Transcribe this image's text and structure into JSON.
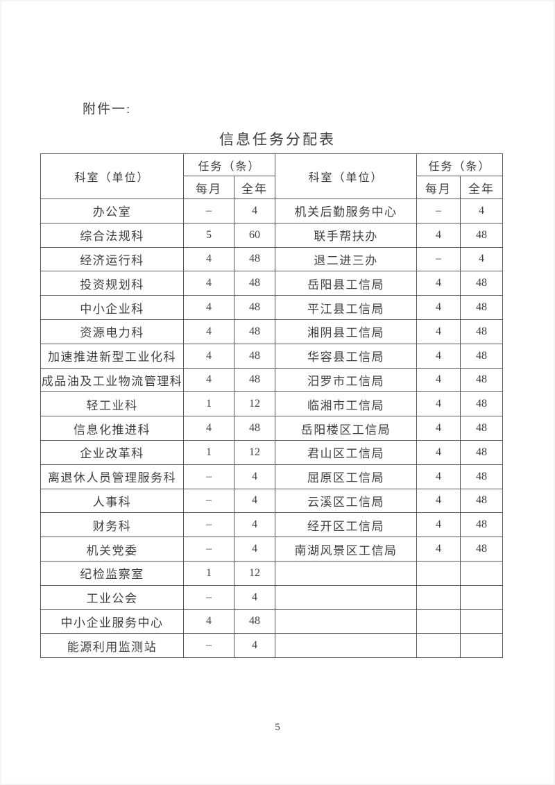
{
  "page": {
    "attachment_label": "附件一:",
    "title": "信息任务分配表",
    "page_number": "5"
  },
  "table": {
    "header": {
      "unit": "科室（单位）",
      "tasks": "任务（条）",
      "monthly": "每月",
      "annual": "全年"
    },
    "left_rows": [
      {
        "name": "办公室",
        "monthly": "–",
        "annual": "4"
      },
      {
        "name": "综合法规科",
        "monthly": "5",
        "annual": "60"
      },
      {
        "name": "经济运行科",
        "monthly": "4",
        "annual": "48"
      },
      {
        "name": "投资规划科",
        "monthly": "4",
        "annual": "48"
      },
      {
        "name": "中小企业科",
        "monthly": "4",
        "annual": "48"
      },
      {
        "name": "资源电力科",
        "monthly": "4",
        "annual": "48"
      },
      {
        "name": "加速推进新型工业化科",
        "monthly": "4",
        "annual": "48"
      },
      {
        "name": "成品油及工业物流管理科",
        "monthly": "4",
        "annual": "48"
      },
      {
        "name": "轻工业科",
        "monthly": "1",
        "annual": "12"
      },
      {
        "name": "信息化推进科",
        "monthly": "4",
        "annual": "48"
      },
      {
        "name": "企业改革科",
        "monthly": "1",
        "annual": "12"
      },
      {
        "name": "离退休人员管理服务科",
        "monthly": "–",
        "annual": "4"
      },
      {
        "name": "人事科",
        "monthly": "–",
        "annual": "4"
      },
      {
        "name": "财务科",
        "monthly": "–",
        "annual": "4"
      },
      {
        "name": "机关党委",
        "monthly": "–",
        "annual": "4"
      },
      {
        "name": "纪检监察室",
        "monthly": "1",
        "annual": "12"
      },
      {
        "name": "工业公会",
        "monthly": "–",
        "annual": "4"
      },
      {
        "name": "中小企业服务中心",
        "monthly": "4",
        "annual": "48"
      },
      {
        "name": "能源利用监测站",
        "monthly": "–",
        "annual": "4"
      }
    ],
    "right_rows": [
      {
        "name": "机关后勤服务中心",
        "monthly": "–",
        "annual": "4"
      },
      {
        "name": "联手帮扶办",
        "monthly": "4",
        "annual": "48"
      },
      {
        "name": "退二进三办",
        "monthly": "–",
        "annual": "4"
      },
      {
        "name": "岳阳县工信局",
        "monthly": "4",
        "annual": "48"
      },
      {
        "name": "平江县工信局",
        "monthly": "4",
        "annual": "48"
      },
      {
        "name": "湘阴县工信局",
        "monthly": "4",
        "annual": "48"
      },
      {
        "name": "华容县工信局",
        "monthly": "4",
        "annual": "48"
      },
      {
        "name": "汨罗市工信局",
        "monthly": "4",
        "annual": "48"
      },
      {
        "name": "临湘市工信局",
        "monthly": "4",
        "annual": "48"
      },
      {
        "name": "岳阳楼区工信局",
        "monthly": "4",
        "annual": "48"
      },
      {
        "name": "君山区工信局",
        "monthly": "4",
        "annual": "48"
      },
      {
        "name": "屈原区工信局",
        "monthly": "4",
        "annual": "48"
      },
      {
        "name": "云溪区工信局",
        "monthly": "4",
        "annual": "48"
      },
      {
        "name": "经开区工信局",
        "monthly": "4",
        "annual": "48"
      },
      {
        "name": "南湖风景区工信局",
        "monthly": "4",
        "annual": "48"
      },
      {
        "name": "",
        "monthly": "",
        "annual": ""
      },
      {
        "name": "",
        "monthly": "",
        "annual": ""
      },
      {
        "name": "",
        "monthly": "",
        "annual": ""
      },
      {
        "name": "",
        "monthly": "",
        "annual": ""
      }
    ]
  },
  "colors": {
    "text": "#3f3f3f",
    "border": "#55585c",
    "page_bg": "#ffffff"
  }
}
